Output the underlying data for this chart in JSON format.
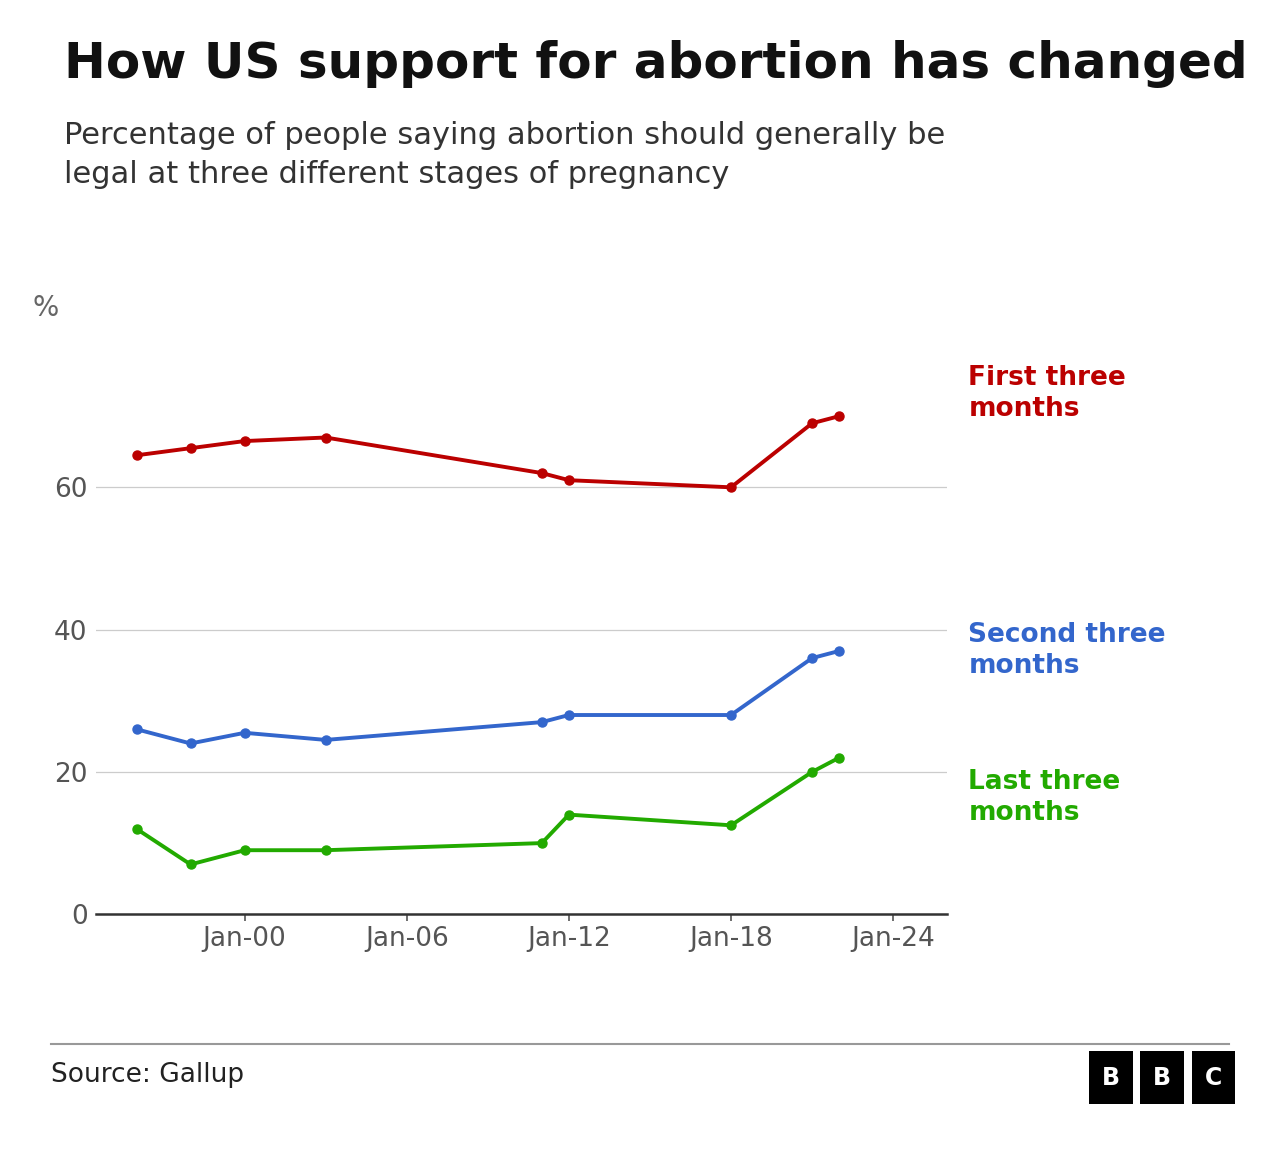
{
  "title": "How US support for abortion has changed",
  "subtitle": "Percentage of people saying abortion should generally be\nlegal at three different stages of pregnancy",
  "ylabel": "%",
  "source": "Source: Gallup",
  "background_color": "#ffffff",
  "x_tick_labels": [
    "Jan-00",
    "Jan-06",
    "Jan-12",
    "Jan-18",
    "Jan-24"
  ],
  "x_tick_years": [
    2000,
    2006,
    2012,
    2018,
    2024
  ],
  "yticks": [
    0,
    20,
    40,
    60
  ],
  "ylim": [
    0,
    80
  ],
  "xlim": [
    1994.5,
    2026
  ],
  "red_line": {
    "years": [
      1996,
      1998,
      2000,
      2003,
      2011,
      2012,
      2018,
      2021,
      2022
    ],
    "values": [
      64.5,
      65.5,
      66.5,
      67.0,
      62.0,
      61.0,
      60.0,
      69.0,
      70.0
    ],
    "color": "#bb0000",
    "label": "First three\nmonths"
  },
  "blue_line": {
    "years": [
      1996,
      1998,
      2000,
      2003,
      2011,
      2012,
      2018,
      2021,
      2022
    ],
    "values": [
      26.0,
      24.0,
      25.5,
      24.5,
      27.0,
      28.0,
      28.0,
      36.0,
      37.0
    ],
    "color": "#3366cc",
    "label": "Second three\nmonths"
  },
  "green_line": {
    "years": [
      1996,
      1998,
      2000,
      2003,
      2011,
      2012,
      2018,
      2021,
      2022
    ],
    "values": [
      12.0,
      7.0,
      9.0,
      9.0,
      10.0,
      14.0,
      12.5,
      20.0,
      22.0
    ],
    "color": "#22aa00",
    "label": "Last three\nmonths"
  }
}
